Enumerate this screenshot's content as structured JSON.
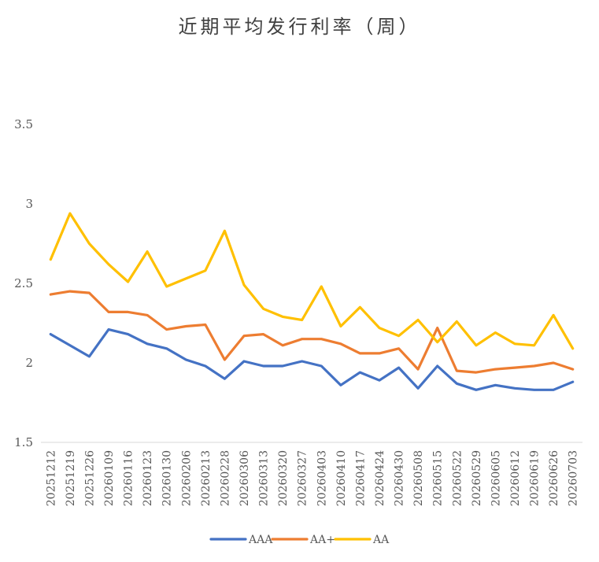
{
  "chart_data": {
    "type": "line",
    "title": "近期平均发行利率（周）",
    "xlabel": "",
    "ylabel": "",
    "ylim": [
      1.5,
      3.5
    ],
    "yticks": [
      "1.5",
      "2",
      "2.5",
      "3",
      "3.5"
    ],
    "ytick_values": [
      1.5,
      2,
      2.5,
      3,
      3.5
    ],
    "grid": false,
    "legend_position": "bottom",
    "categories": [
      "20251212",
      "20251219",
      "20251226",
      "20260109",
      "20260116",
      "20260123",
      "20260130",
      "20260206",
      "20260213",
      "20260228",
      "20260306",
      "20260313",
      "20260320",
      "20260327",
      "20260403",
      "20260410",
      "20260417",
      "20260424",
      "20260430",
      "20260508",
      "20260515",
      "20260522",
      "20260529",
      "20260605",
      "20260612",
      "20260619",
      "20260626",
      "20260703"
    ],
    "series": [
      {
        "name": "AAA",
        "color": "#4472C4",
        "values": [
          2.18,
          2.11,
          2.04,
          2.21,
          2.18,
          2.12,
          2.09,
          2.02,
          1.98,
          1.9,
          2.01,
          1.98,
          1.98,
          2.01,
          1.98,
          1.86,
          1.94,
          1.89,
          1.97,
          1.84,
          1.98,
          1.87,
          1.83,
          1.86,
          1.84,
          1.83,
          1.83,
          1.88
        ]
      },
      {
        "name": "AA+",
        "color": "#ED7D31",
        "values": [
          2.43,
          2.45,
          2.44,
          2.32,
          2.32,
          2.3,
          2.21,
          2.23,
          2.24,
          2.02,
          2.17,
          2.18,
          2.11,
          2.15,
          2.15,
          2.12,
          2.06,
          2.06,
          2.09,
          1.96,
          2.22,
          1.95,
          1.94,
          1.96,
          1.97,
          1.98,
          2.0,
          1.96
        ]
      },
      {
        "name": "AA",
        "color": "#FFC000",
        "values": [
          2.65,
          2.94,
          2.75,
          2.62,
          2.51,
          2.7,
          2.48,
          2.53,
          2.58,
          2.83,
          2.49,
          2.34,
          2.29,
          2.27,
          2.48,
          2.23,
          2.35,
          2.22,
          2.17,
          2.27,
          2.13,
          2.26,
          2.11,
          2.19,
          2.12,
          2.11,
          2.3,
          2.09
        ]
      }
    ]
  }
}
